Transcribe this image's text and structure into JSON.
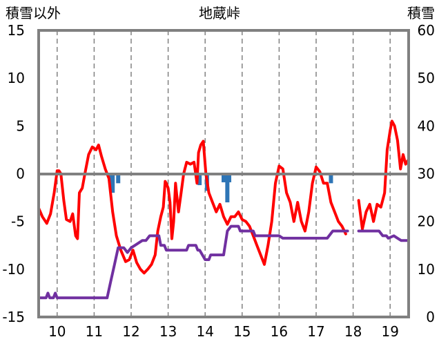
{
  "chart_data": {
    "type": "line",
    "title": "地蔵峠",
    "left_axis_label": "積雪以外",
    "right_axis_label": "積雪",
    "x_ticks": [
      "10",
      "11",
      "12",
      "13",
      "14",
      "15",
      "16",
      "17",
      "18",
      "19"
    ],
    "xlim": [
      9.5,
      19.5
    ],
    "left_ylim": [
      -15,
      15
    ],
    "left_yticks": [
      15,
      10,
      5,
      0,
      -5,
      -10,
      -15
    ],
    "right_ylim": [
      0,
      60
    ],
    "right_yticks": [
      60,
      50,
      40,
      30,
      20,
      10,
      0
    ],
    "grid": "vertical-dashed",
    "zero_line": true,
    "colors": {
      "temperature": "#ff0000",
      "snow_depth": "#7030a0",
      "precipitation": "#2e75b6",
      "zero_line": "#808080",
      "grid": "#808080"
    },
    "series": [
      {
        "type": "line",
        "axis": "left",
        "color": "#ff0000",
        "segments": [
          [
            [
              9.5,
              -3.6
            ],
            [
              9.6,
              -4.5
            ],
            [
              9.72,
              -5.2
            ],
            [
              9.82,
              -4.2
            ],
            [
              9.92,
              -2.0
            ],
            [
              10.0,
              0.3
            ],
            [
              10.05,
              0.3
            ],
            [
              10.1,
              0.0
            ],
            [
              10.18,
              -2.8
            ],
            [
              10.25,
              -4.8
            ],
            [
              10.35,
              -5.0
            ],
            [
              10.42,
              -4.2
            ],
            [
              10.5,
              -6.5
            ],
            [
              10.55,
              -6.8
            ],
            [
              10.6,
              -2.0
            ],
            [
              10.68,
              -1.5
            ],
            [
              10.75,
              0.0
            ],
            [
              10.85,
              2.0
            ],
            [
              10.95,
              2.8
            ],
            [
              11.05,
              2.5
            ],
            [
              11.12,
              3.0
            ],
            [
              11.2,
              1.8
            ],
            [
              11.3,
              0.5
            ],
            [
              11.4,
              -0.5
            ],
            [
              11.5,
              -4.0
            ],
            [
              11.6,
              -6.5
            ],
            [
              11.72,
              -8.0
            ],
            [
              11.85,
              -9.2
            ],
            [
              11.95,
              -9.0
            ],
            [
              12.05,
              -8.0
            ],
            [
              12.15,
              -9.3
            ],
            [
              12.25,
              -10.0
            ],
            [
              12.35,
              -10.4
            ],
            [
              12.45,
              -10.0
            ],
            [
              12.55,
              -9.5
            ],
            [
              12.65,
              -8.5
            ],
            [
              12.72,
              -6.0
            ],
            [
              12.8,
              -4.5
            ],
            [
              12.87,
              -3.5
            ],
            [
              12.92,
              -0.8
            ],
            [
              12.95,
              -1.0
            ],
            [
              13.0,
              -1.5
            ],
            [
              13.05,
              -3.0
            ],
            [
              13.1,
              -6.8
            ],
            [
              13.15,
              -5.0
            ],
            [
              13.2,
              -1.0
            ],
            [
              13.28,
              -4.0
            ],
            [
              13.35,
              -2.0
            ],
            [
              13.42,
              0.0
            ],
            [
              13.5,
              1.2
            ],
            [
              13.6,
              1.0
            ],
            [
              13.7,
              1.2
            ],
            [
              13.78,
              -1.0
            ],
            [
              13.82,
              2.2
            ],
            [
              13.88,
              3.0
            ],
            [
              13.95,
              3.4
            ],
            [
              14.02,
              0.0
            ],
            [
              14.1,
              -2.0
            ],
            [
              14.2,
              -3.0
            ],
            [
              14.3,
              -4.0
            ],
            [
              14.4,
              -3.2
            ],
            [
              14.5,
              -4.5
            ],
            [
              14.6,
              -5.3
            ],
            [
              14.7,
              -4.5
            ],
            [
              14.8,
              -4.5
            ],
            [
              14.9,
              -4.0
            ],
            [
              15.0,
              -4.8
            ],
            [
              15.1,
              -5.0
            ],
            [
              15.2,
              -5.5
            ],
            [
              15.3,
              -6.5
            ],
            [
              15.4,
              -7.5
            ],
            [
              15.5,
              -8.5
            ],
            [
              15.6,
              -9.5
            ],
            [
              15.7,
              -7.5
            ],
            [
              15.8,
              -5.0
            ],
            [
              15.9,
              -1.0
            ],
            [
              16.0,
              0.8
            ],
            [
              16.1,
              0.5
            ],
            [
              16.2,
              -2.0
            ],
            [
              16.3,
              -3.0
            ],
            [
              16.4,
              -5.0
            ],
            [
              16.5,
              -3.0
            ],
            [
              16.6,
              -5.0
            ],
            [
              16.7,
              -6.0
            ],
            [
              16.8,
              -4.0
            ],
            [
              16.9,
              -1.0
            ],
            [
              17.0,
              0.7
            ],
            [
              17.1,
              0.2
            ],
            [
              17.2,
              -1.0
            ],
            [
              17.3,
              -1.0
            ],
            [
              17.4,
              -3.0
            ],
            [
              17.5,
              -4.0
            ],
            [
              17.6,
              -5.0
            ],
            [
              17.7,
              -5.5
            ],
            [
              17.8,
              -6.3
            ]
          ],
          [
            [
              18.15,
              -2.8
            ],
            [
              18.25,
              -5.8
            ],
            [
              18.35,
              -4.0
            ],
            [
              18.45,
              -3.2
            ],
            [
              18.55,
              -5.0
            ],
            [
              18.65,
              -3.2
            ],
            [
              18.75,
              -3.5
            ],
            [
              18.85,
              -2.0
            ],
            [
              18.92,
              2.5
            ],
            [
              19.0,
              4.5
            ],
            [
              19.05,
              5.5
            ],
            [
              19.12,
              5.0
            ],
            [
              19.2,
              3.5
            ],
            [
              19.28,
              0.5
            ],
            [
              19.35,
              2.0
            ],
            [
              19.42,
              1.0
            ],
            [
              19.5,
              1.5
            ]
          ]
        ]
      },
      {
        "type": "line",
        "axis": "right",
        "color": "#7030a0",
        "segments": [
          [
            [
              9.5,
              4.0
            ],
            [
              9.7,
              4.0
            ],
            [
              9.75,
              5.0
            ],
            [
              9.8,
              4.0
            ],
            [
              9.9,
              4.0
            ],
            [
              9.95,
              5.0
            ],
            [
              10.0,
              4.0
            ],
            [
              11.35,
              4.0
            ],
            [
              11.45,
              7.5
            ],
            [
              11.55,
              11.0
            ],
            [
              11.65,
              14.5
            ],
            [
              11.8,
              14.5
            ],
            [
              11.9,
              13.5
            ],
            [
              12.0,
              14.5
            ],
            [
              12.1,
              15.0
            ],
            [
              12.3,
              16.0
            ],
            [
              12.4,
              16.0
            ],
            [
              12.5,
              17.0
            ],
            [
              12.75,
              17.0
            ],
            [
              12.8,
              15.0
            ],
            [
              12.9,
              15.0
            ],
            [
              12.95,
              14.0
            ],
            [
              13.5,
              14.0
            ],
            [
              13.55,
              15.0
            ],
            [
              13.75,
              15.0
            ],
            [
              13.8,
              14.0
            ],
            [
              13.85,
              14.0
            ],
            [
              14.0,
              12.0
            ],
            [
              14.1,
              12.0
            ],
            [
              14.15,
              13.0
            ],
            [
              14.5,
              13.0
            ],
            [
              14.6,
              18.0
            ],
            [
              14.7,
              19.0
            ],
            [
              14.9,
              19.0
            ],
            [
              14.95,
              18.0
            ],
            [
              15.3,
              18.0
            ],
            [
              15.35,
              17.0
            ],
            [
              16.0,
              17.0
            ],
            [
              16.1,
              16.5
            ],
            [
              17.3,
              16.5
            ],
            [
              17.45,
              18.0
            ],
            [
              17.85,
              18.0
            ]
          ],
          [
            [
              18.15,
              18.0
            ],
            [
              18.7,
              18.0
            ],
            [
              18.8,
              17.0
            ],
            [
              18.9,
              17.0
            ],
            [
              18.95,
              16.5
            ],
            [
              19.1,
              17.0
            ],
            [
              19.2,
              16.5
            ],
            [
              19.3,
              16.0
            ],
            [
              19.4,
              16.0
            ],
            [
              19.5,
              16.0
            ]
          ]
        ]
      },
      {
        "type": "bar",
        "axis": "left",
        "color": "#2e75b6",
        "baseline": 0,
        "points": [
          [
            11.45,
            -0.9
          ],
          [
            11.5,
            -2.0
          ],
          [
            11.65,
            -1.0
          ],
          [
            13.85,
            -1.2
          ],
          [
            14.05,
            -1.8
          ],
          [
            14.5,
            -0.9
          ],
          [
            14.6,
            -3.0
          ],
          [
            14.65,
            -0.9
          ],
          [
            17.4,
            -1.0
          ]
        ]
      }
    ]
  }
}
